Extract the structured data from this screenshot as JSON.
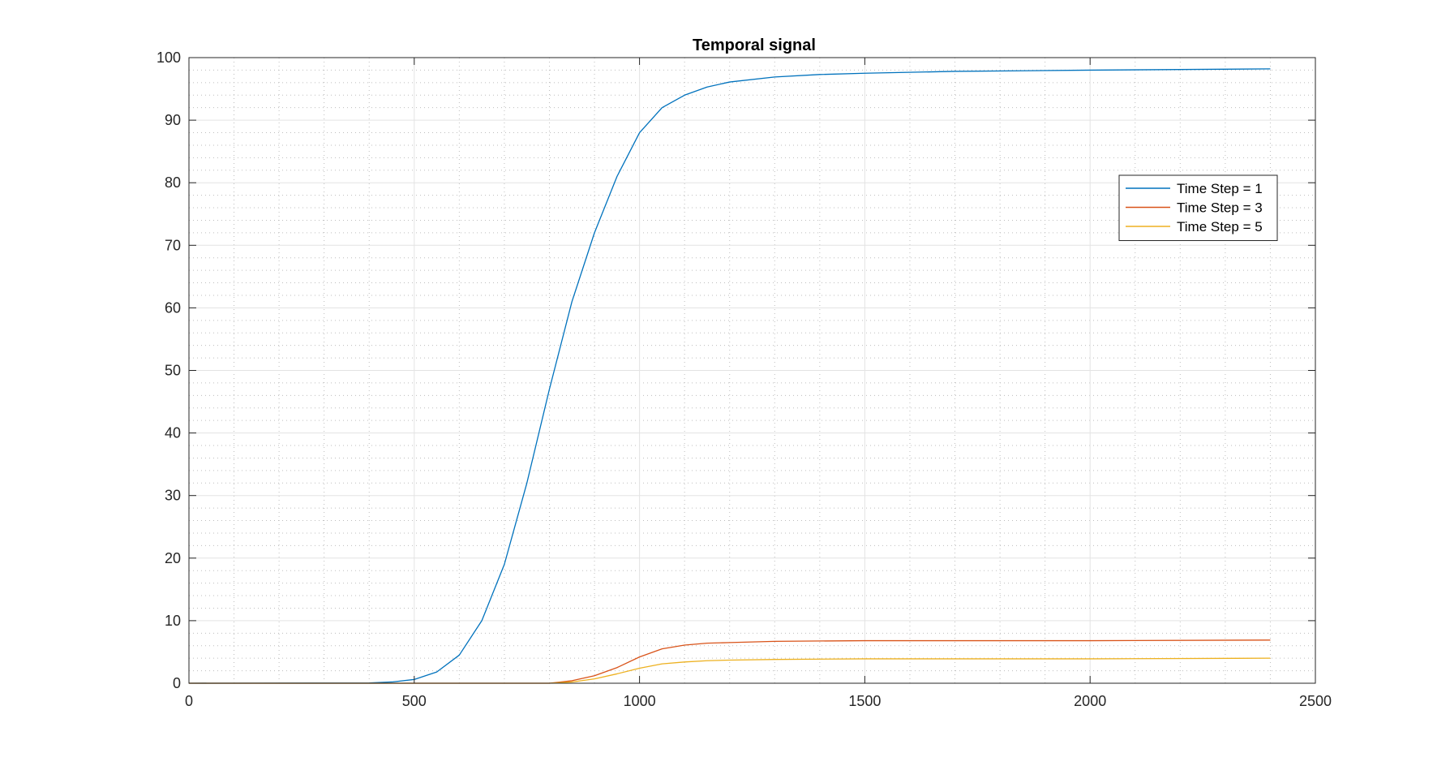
{
  "chart_data": {
    "type": "line",
    "title": "Temporal signal",
    "xlabel": "",
    "ylabel": "",
    "xlim": [
      0,
      2500
    ],
    "ylim": [
      0,
      100
    ],
    "x_ticks": [
      0,
      500,
      1000,
      1500,
      2000,
      2500
    ],
    "y_ticks": [
      0,
      10,
      20,
      30,
      40,
      50,
      60,
      70,
      80,
      90,
      100
    ],
    "x_tick_labels": [
      "0",
      "500",
      "1000",
      "1500",
      "2000",
      "2500"
    ],
    "y_tick_labels": [
      "0",
      "10",
      "20",
      "30",
      "40",
      "50",
      "60",
      "70",
      "80",
      "90",
      "100"
    ],
    "grid": true,
    "minor_grid": true,
    "legend_position": "top-right",
    "series": [
      {
        "name": "Time Step = 1",
        "color": "#0072bd",
        "x": [
          0,
          400,
          450,
          500,
          550,
          600,
          650,
          700,
          750,
          800,
          850,
          900,
          950,
          1000,
          1050,
          1100,
          1150,
          1200,
          1300,
          1400,
          1500,
          1700,
          2000,
          2400
        ],
        "y": [
          0,
          0.05,
          0.2,
          0.6,
          1.8,
          4.5,
          10,
          19,
          32,
          47,
          61,
          72,
          81,
          88,
          92,
          94,
          95.3,
          96.1,
          96.9,
          97.3,
          97.5,
          97.8,
          98.0,
          98.2
        ]
      },
      {
        "name": "Time Step = 3",
        "color": "#d95319",
        "x": [
          0,
          800,
          850,
          900,
          950,
          1000,
          1050,
          1100,
          1150,
          1200,
          1300,
          1500,
          2000,
          2400
        ],
        "y": [
          0,
          0,
          0.4,
          1.2,
          2.5,
          4.2,
          5.5,
          6.1,
          6.4,
          6.5,
          6.7,
          6.8,
          6.8,
          6.9
        ]
      },
      {
        "name": "Time Step = 5",
        "color": "#edb120",
        "x": [
          0,
          800,
          850,
          900,
          950,
          1000,
          1050,
          1100,
          1150,
          1200,
          1300,
          1500,
          2000,
          2400
        ],
        "y": [
          0,
          0,
          0.2,
          0.7,
          1.5,
          2.4,
          3.1,
          3.4,
          3.6,
          3.7,
          3.8,
          3.9,
          3.9,
          4.0
        ]
      }
    ]
  }
}
